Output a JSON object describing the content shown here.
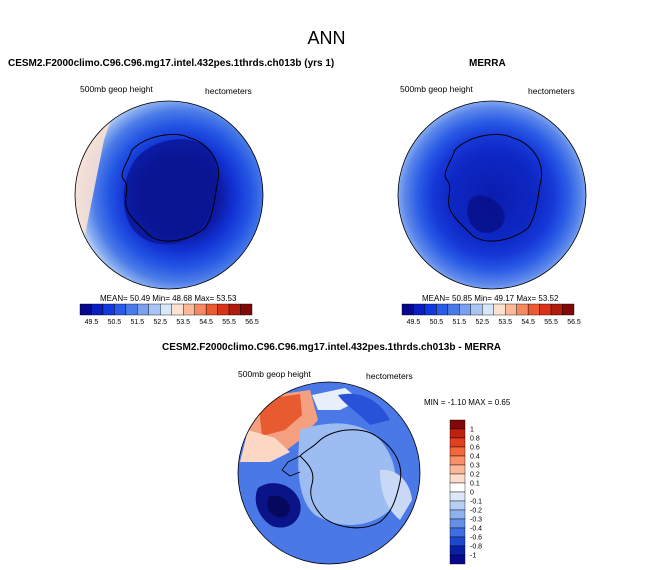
{
  "page": {
    "title": "ANN",
    "variable_label": "500mb geop height",
    "units_label": "hectometers"
  },
  "panels": {
    "model": {
      "title": "CESM2.F2000climo.C96.C96.mg17.intel.432pes.1thrds.ch013b (yrs 1)",
      "mean_label": "MEAN=",
      "mean": "50.49",
      "min_label": "Min=",
      "min": "48.68",
      "max_label": "Max=",
      "max": "53.53"
    },
    "obs": {
      "title": "MERRA",
      "mean_label": "MEAN=",
      "mean": "50.85",
      "min_label": "Min=",
      "min": "49.17",
      "max_label": "Max=",
      "max": "53.52"
    },
    "diff": {
      "title": "CESM2.F2000climo.C96.C96.mg17.intel.432pes.1thrds.ch013b - MERRA",
      "stats_text": "MIN =  -1.10 MAX =   0.65"
    }
  },
  "colorbar_abs": {
    "labels": [
      "49.5",
      "50.5",
      "51.5",
      "52.5",
      "53.5",
      "54.5",
      "55.5",
      "56.5"
    ],
    "colors": [
      "#08088c",
      "#0a1ec2",
      "#1238e0",
      "#2a5ae8",
      "#4a7ae8",
      "#7aa0ee",
      "#aac4f4",
      "#d8e6fa",
      "#fde2d2",
      "#fbb99a",
      "#f58a62",
      "#ec5a32",
      "#d8321a",
      "#b01c0e",
      "#800808"
    ]
  },
  "colorbar_diff": {
    "labels": [
      "1",
      "0.8",
      "0.6",
      "0.4",
      "0.3",
      "0.2",
      "0.1",
      "0",
      "-0.1",
      "-0.2",
      "-0.3",
      "-0.4",
      "-0.6",
      "-0.8",
      "-1"
    ],
    "colors": [
      "#800808",
      "#c0200e",
      "#e2401e",
      "#f0683c",
      "#f89068",
      "#fab898",
      "#fddccb",
      "#ffffff",
      "#dce8fa",
      "#b8cff4",
      "#8eb2ee",
      "#6490e8",
      "#3e6ee2",
      "#1c48d0",
      "#0a1ea8",
      "#08088c"
    ]
  }
}
